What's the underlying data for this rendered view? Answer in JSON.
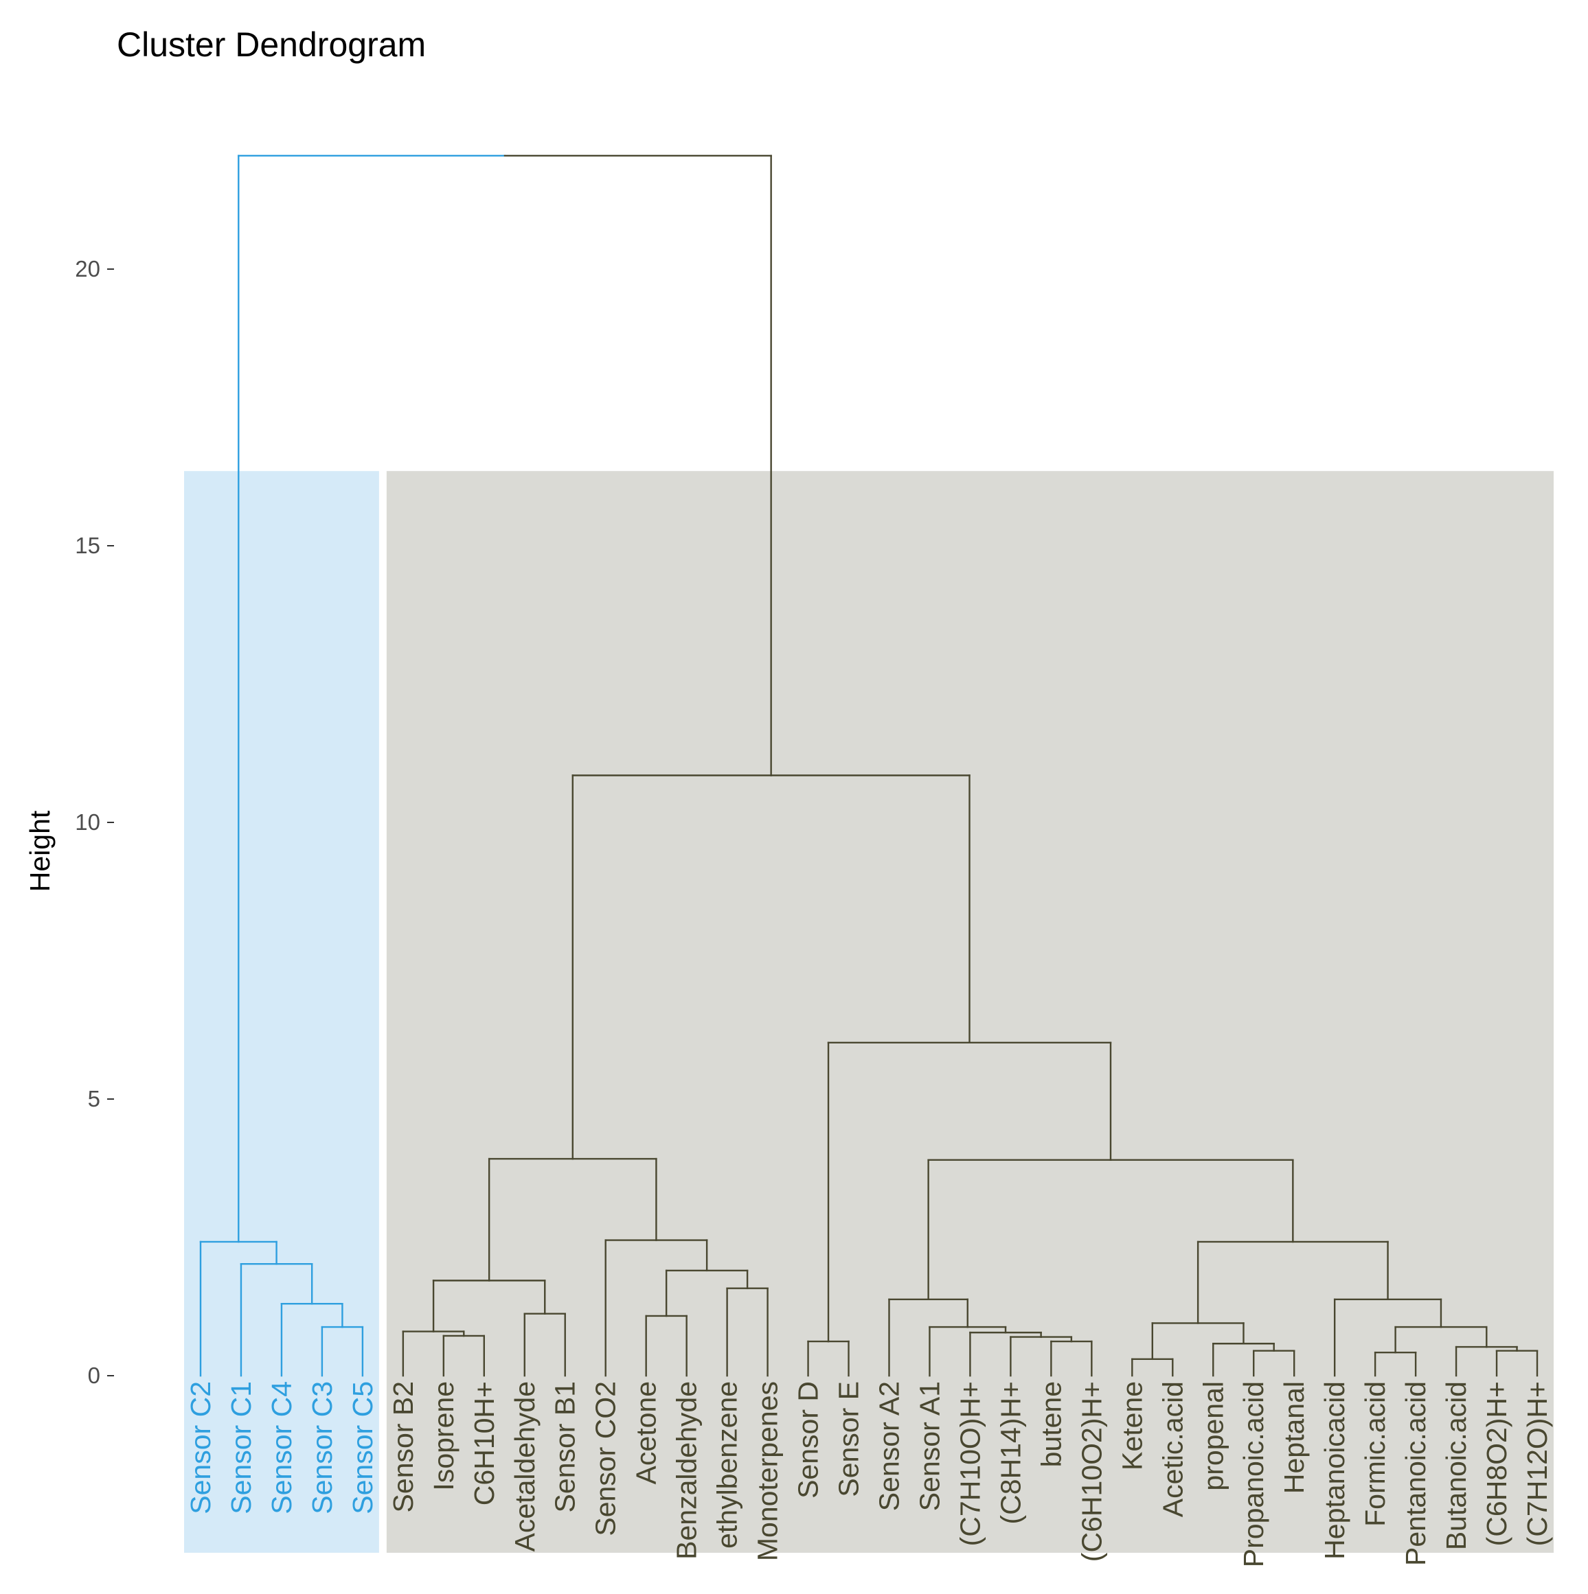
{
  "chart_data": {
    "type": "dendrogram",
    "title": "Cluster Dendrogram",
    "xlabel": "",
    "ylabel": "Height",
    "ylim": [
      -3.2,
      22.5
    ],
    "yticks": [
      0,
      5,
      10,
      15,
      20
    ],
    "colors": {
      "cluster1": "#2E9FDF",
      "cluster2": "#494730",
      "rect1": "#D5EAF8",
      "rect2": "#DADAD5"
    },
    "clusters": [
      {
        "name": "cluster1",
        "leaves": [
          0,
          4
        ]
      },
      {
        "name": "cluster2",
        "leaves": [
          5,
          33
        ]
      }
    ],
    "leaves": [
      "Sensor C2",
      "Sensor C1",
      "Sensor C4",
      "Sensor C3",
      "Sensor C5",
      "Sensor B2",
      "Isoprene",
      "C6H10H+",
      "Acetaldehyde",
      "Sensor B1",
      "Sensor CO2",
      "Acetone",
      "Benzaldehyde",
      "ethylbenzene",
      "Monoterpenes",
      "Sensor D",
      "Sensor E",
      "Sensor A2",
      "Sensor A1",
      "(C7H10O)H+",
      "(C8H14)H+",
      "butene",
      "(C6H10O2)H+",
      "Ketene",
      "Acetic.acid",
      "propenal",
      "Propanoic.acid",
      "Heptanal",
      "Heptanoicacid",
      "Formic.acid",
      "Pentanoic.acid",
      "Butanoic.acid",
      "(C6H8O2)H+",
      "(C7H12O)H+"
    ],
    "merges": [
      {
        "id": "m1",
        "left": "L3",
        "right": "L4",
        "height": 0.88
      },
      {
        "id": "m2",
        "left": "L2",
        "right": "m1",
        "height": 1.3
      },
      {
        "id": "m3",
        "left": "L1",
        "right": "m2",
        "height": 2.02
      },
      {
        "id": "m4",
        "left": "L0",
        "right": "m3",
        "height": 2.42
      },
      {
        "id": "m5",
        "left": "L6",
        "right": "L7",
        "height": 0.72
      },
      {
        "id": "m6",
        "left": "L5",
        "right": "m5",
        "height": 0.8
      },
      {
        "id": "m7",
        "left": "L8",
        "right": "L9",
        "height": 1.12
      },
      {
        "id": "m8",
        "left": "m6",
        "right": "m7",
        "height": 1.72
      },
      {
        "id": "m9",
        "left": "L11",
        "right": "L12",
        "height": 1.08
      },
      {
        "id": "m10",
        "left": "L13",
        "right": "L14",
        "height": 1.58
      },
      {
        "id": "m11",
        "left": "m9",
        "right": "m10",
        "height": 1.9
      },
      {
        "id": "m12",
        "left": "L10",
        "right": "m11",
        "height": 2.45
      },
      {
        "id": "m13",
        "left": "m8",
        "right": "m12",
        "height": 3.92
      },
      {
        "id": "m14",
        "left": "L15",
        "right": "L16",
        "height": 0.62
      },
      {
        "id": "m15",
        "left": "L21",
        "right": "L22",
        "height": 0.62
      },
      {
        "id": "m16",
        "left": "L20",
        "right": "m15",
        "height": 0.7
      },
      {
        "id": "m17",
        "left": "L19",
        "right": "m16",
        "height": 0.78
      },
      {
        "id": "m18",
        "left": "L18",
        "right": "m17",
        "height": 0.88
      },
      {
        "id": "m19",
        "left": "L17",
        "right": "m18",
        "height": 1.38
      },
      {
        "id": "m20",
        "left": "L23",
        "right": "L24",
        "height": 0.3
      },
      {
        "id": "m21",
        "left": "L26",
        "right": "L27",
        "height": 0.45
      },
      {
        "id": "m22",
        "left": "L25",
        "right": "m21",
        "height": 0.58
      },
      {
        "id": "m23",
        "left": "m20",
        "right": "m22",
        "height": 0.95
      },
      {
        "id": "m24",
        "left": "L32",
        "right": "L33",
        "height": 0.45
      },
      {
        "id": "m25",
        "left": "L31",
        "right": "m24",
        "height": 0.52
      },
      {
        "id": "m26",
        "left": "L29",
        "right": "L30",
        "height": 0.42
      },
      {
        "id": "m27",
        "left": "m26",
        "right": "m25",
        "height": 0.88
      },
      {
        "id": "m28",
        "left": "L28",
        "right": "m27",
        "height": 1.38
      },
      {
        "id": "m29",
        "left": "m23",
        "right": "m28",
        "height": 2.42
      },
      {
        "id": "m30",
        "left": "m19",
        "right": "m29",
        "height": 3.9
      },
      {
        "id": "m31",
        "left": "m14",
        "right": "m30",
        "height": 6.02
      },
      {
        "id": "m32",
        "left": "m13",
        "right": "m31",
        "height": 10.85
      },
      {
        "id": "m33",
        "left": "m4",
        "right": "m32",
        "height": 22.05
      }
    ]
  }
}
